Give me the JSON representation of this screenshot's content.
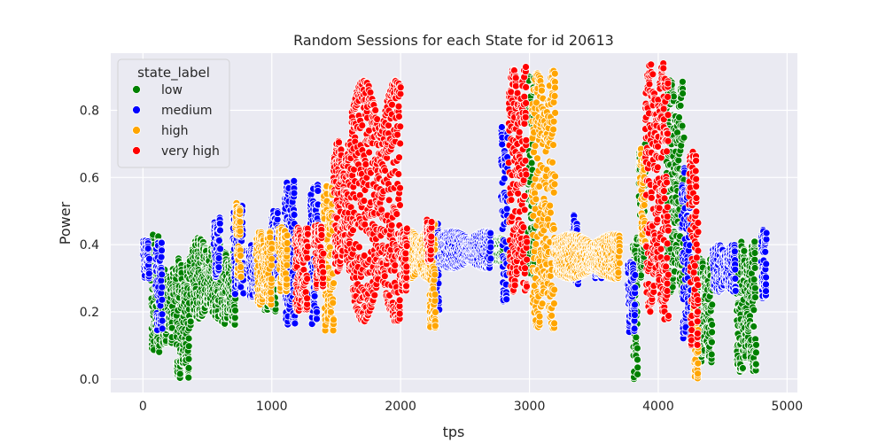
{
  "chart_data": {
    "type": "scatter",
    "title": "Random Sessions for each State for id 20613",
    "xlabel": "tps",
    "ylabel": "Power",
    "xlim": [
      -250,
      5080
    ],
    "ylim": [
      -0.04,
      0.97
    ],
    "xticks": [
      0,
      1000,
      2000,
      3000,
      4000,
      5000
    ],
    "xtick_labels": [
      "0",
      "1000",
      "2000",
      "3000",
      "4000",
      "5000"
    ],
    "yticks": [
      0.0,
      0.2,
      0.4,
      0.6,
      0.8
    ],
    "ytick_labels": [
      "0.0",
      "0.2",
      "0.4",
      "0.6",
      "0.8"
    ],
    "grid": true,
    "style": "seaborn-darkgrid",
    "legend": {
      "title": "state_label",
      "placement": "top-left"
    },
    "series": [
      {
        "name": "low",
        "color": "#008000",
        "segments": [
          {
            "x": [
              60,
              130
            ],
            "y": [
              0.08,
              0.43
            ]
          },
          {
            "x": [
              140,
              240
            ],
            "y": [
              0.1,
              0.33
            ]
          },
          {
            "x": [
              250,
              370
            ],
            "y": [
              0.0,
              0.36
            ]
          },
          {
            "x": [
              380,
              600
            ],
            "y": [
              0.18,
              0.42
            ]
          },
          {
            "x": [
              600,
              720
            ],
            "y": [
              0.16,
              0.38
            ]
          },
          {
            "x": [
              930,
              1030
            ],
            "y": [
              0.2,
              0.4
            ]
          },
          {
            "x": [
              2280,
              2800
            ],
            "y": [
              0.35,
              0.42
            ]
          },
          {
            "x": [
              2980,
              3040
            ],
            "y": [
              0.3,
              0.9
            ]
          },
          {
            "x": [
              3800,
              3840
            ],
            "y": [
              0.0,
              0.43
            ]
          },
          {
            "x": [
              3850,
              3900
            ],
            "y": [
              0.3,
              0.7
            ]
          },
          {
            "x": [
              4060,
              4200
            ],
            "y": [
              0.25,
              0.89
            ]
          },
          {
            "x": [
              4300,
              4420
            ],
            "y": [
              0.05,
              0.36
            ]
          },
          {
            "x": [
              4600,
              4760
            ],
            "y": [
              0.02,
              0.41
            ]
          }
        ]
      },
      {
        "name": "medium",
        "color": "#0000ff",
        "segments": [
          {
            "x": [
              0,
              50
            ],
            "y": [
              0.3,
              0.42
            ]
          },
          {
            "x": [
              100,
              150
            ],
            "y": [
              0.14,
              0.41
            ]
          },
          {
            "x": [
              550,
              600
            ],
            "y": [
              0.3,
              0.48
            ]
          },
          {
            "x": [
              700,
              780
            ],
            "y": [
              0.25,
              0.52
            ]
          },
          {
            "x": [
              820,
              900
            ],
            "y": [
              0.24,
              0.4
            ]
          },
          {
            "x": [
              1000,
              1050
            ],
            "y": [
              0.3,
              0.5
            ]
          },
          {
            "x": [
              1100,
              1180
            ],
            "y": [
              0.16,
              0.59
            ]
          },
          {
            "x": [
              1300,
              1360
            ],
            "y": [
              0.16,
              0.58
            ]
          },
          {
            "x": [
              2240,
              2300
            ],
            "y": [
              0.2,
              0.47
            ]
          },
          {
            "x": [
              2300,
              2700
            ],
            "y": [
              0.33,
              0.44
            ]
          },
          {
            "x": [
              2780,
              2830
            ],
            "y": [
              0.22,
              0.78
            ]
          },
          {
            "x": [
              3340,
              3380
            ],
            "y": [
              0.28,
              0.5
            ]
          },
          {
            "x": [
              3500,
              3560
            ],
            "y": [
              0.3,
              0.4
            ]
          },
          {
            "x": [
              3760,
              3820
            ],
            "y": [
              0.14,
              0.36
            ]
          },
          {
            "x": [
              4180,
              4260
            ],
            "y": [
              0.11,
              0.63
            ]
          },
          {
            "x": [
              4420,
              4600
            ],
            "y": [
              0.26,
              0.4
            ]
          },
          {
            "x": [
              4800,
              4840
            ],
            "y": [
              0.24,
              0.45
            ]
          }
        ]
      },
      {
        "name": "high",
        "color": "#ffa500",
        "segments": [
          {
            "x": [
              720,
              760
            ],
            "y": [
              0.3,
              0.53
            ]
          },
          {
            "x": [
              880,
              1000
            ],
            "y": [
              0.22,
              0.44
            ]
          },
          {
            "x": [
              1050,
              1120
            ],
            "y": [
              0.26,
              0.46
            ]
          },
          {
            "x": [
              1400,
              1480
            ],
            "y": [
              0.14,
              0.58
            ]
          },
          {
            "x": [
              2020,
              2230
            ],
            "y": [
              0.3,
              0.44
            ]
          },
          {
            "x": [
              2220,
              2270
            ],
            "y": [
              0.15,
              0.47
            ]
          },
          {
            "x": [
              3020,
              3200
            ],
            "y": [
              0.15,
              0.92
            ]
          },
          {
            "x": [
              3200,
              3700
            ],
            "y": [
              0.3,
              0.43
            ]
          },
          {
            "x": [
              3860,
              3900
            ],
            "y": [
              0.4,
              0.7
            ]
          },
          {
            "x": [
              4270,
              4310
            ],
            "y": [
              0.0,
              0.25
            ]
          }
        ]
      },
      {
        "name": "very high",
        "color": "#ff0000",
        "segments": [
          {
            "x": [
              1180,
              1280
            ],
            "y": [
              0.2,
              0.45
            ]
          },
          {
            "x": [
              1330,
              1400
            ],
            "y": [
              0.27,
              0.47
            ]
          },
          {
            "x": [
              1480,
              1620
            ],
            "y": [
              0.32,
              0.71
            ]
          },
          {
            "x": [
              1620,
              2000
            ],
            "y": [
              0.17,
              0.89
            ]
          },
          {
            "x": [
              2000,
              2050
            ],
            "y": [
              0.26,
              0.45
            ]
          },
          {
            "x": [
              2200,
              2240
            ],
            "y": [
              0.35,
              0.48
            ]
          },
          {
            "x": [
              2840,
              2980
            ],
            "y": [
              0.26,
              0.93
            ]
          },
          {
            "x": [
              3900,
              4050
            ],
            "y": [
              0.2,
              0.94
            ]
          },
          {
            "x": [
              4040,
              4080
            ],
            "y": [
              0.17,
              0.9
            ]
          },
          {
            "x": [
              4240,
              4310
            ],
            "y": [
              0.1,
              0.71
            ]
          }
        ]
      }
    ]
  }
}
